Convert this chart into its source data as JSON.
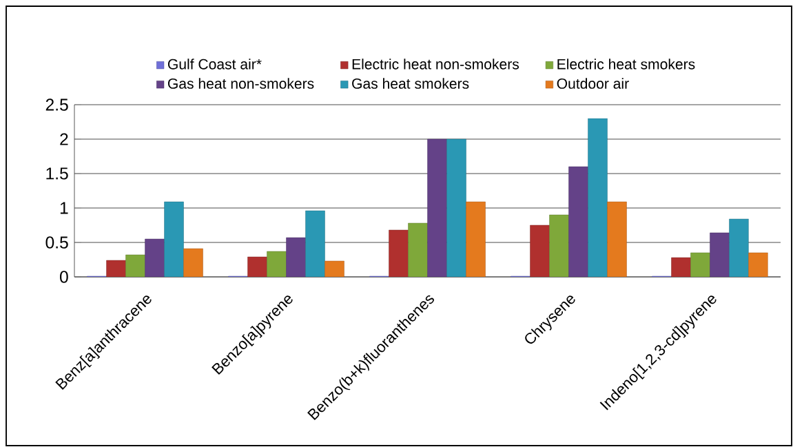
{
  "chart_data": {
    "type": "bar",
    "categories": [
      "Benz[a]anthracene",
      "Benzo[a]pyrene",
      "Benzo(b+k)fluoranthenes",
      "Chrysene",
      "Indeno[1,2,3-cd]pyrene"
    ],
    "series": [
      {
        "name": "Gulf Coast air*",
        "color": "#6f6fd8",
        "values": [
          0.01,
          0.01,
          0.01,
          0.01,
          0.01
        ]
      },
      {
        "name": "Electric heat non-smokers",
        "color": "#b0302e",
        "values": [
          0.24,
          0.29,
          0.68,
          0.75,
          0.28
        ]
      },
      {
        "name": "Electric heat smokers",
        "color": "#7fa83a",
        "values": [
          0.32,
          0.37,
          0.78,
          0.9,
          0.35
        ]
      },
      {
        "name": "Gas heat non-smokers",
        "color": "#644288",
        "values": [
          0.55,
          0.57,
          2.0,
          1.6,
          0.64
        ]
      },
      {
        "name": "Gas heat smokers",
        "color": "#2a98b4",
        "values": [
          1.09,
          0.96,
          2.0,
          2.3,
          0.84
        ]
      },
      {
        "name": "Outdoor air",
        "color": "#e47a1e",
        "values": [
          0.41,
          0.23,
          1.09,
          1.09,
          0.35
        ]
      }
    ],
    "ylim": [
      0,
      2.5
    ],
    "yticks": [
      0,
      0.5,
      1,
      1.5,
      2,
      2.5
    ],
    "grid": "y",
    "legend": "top"
  }
}
